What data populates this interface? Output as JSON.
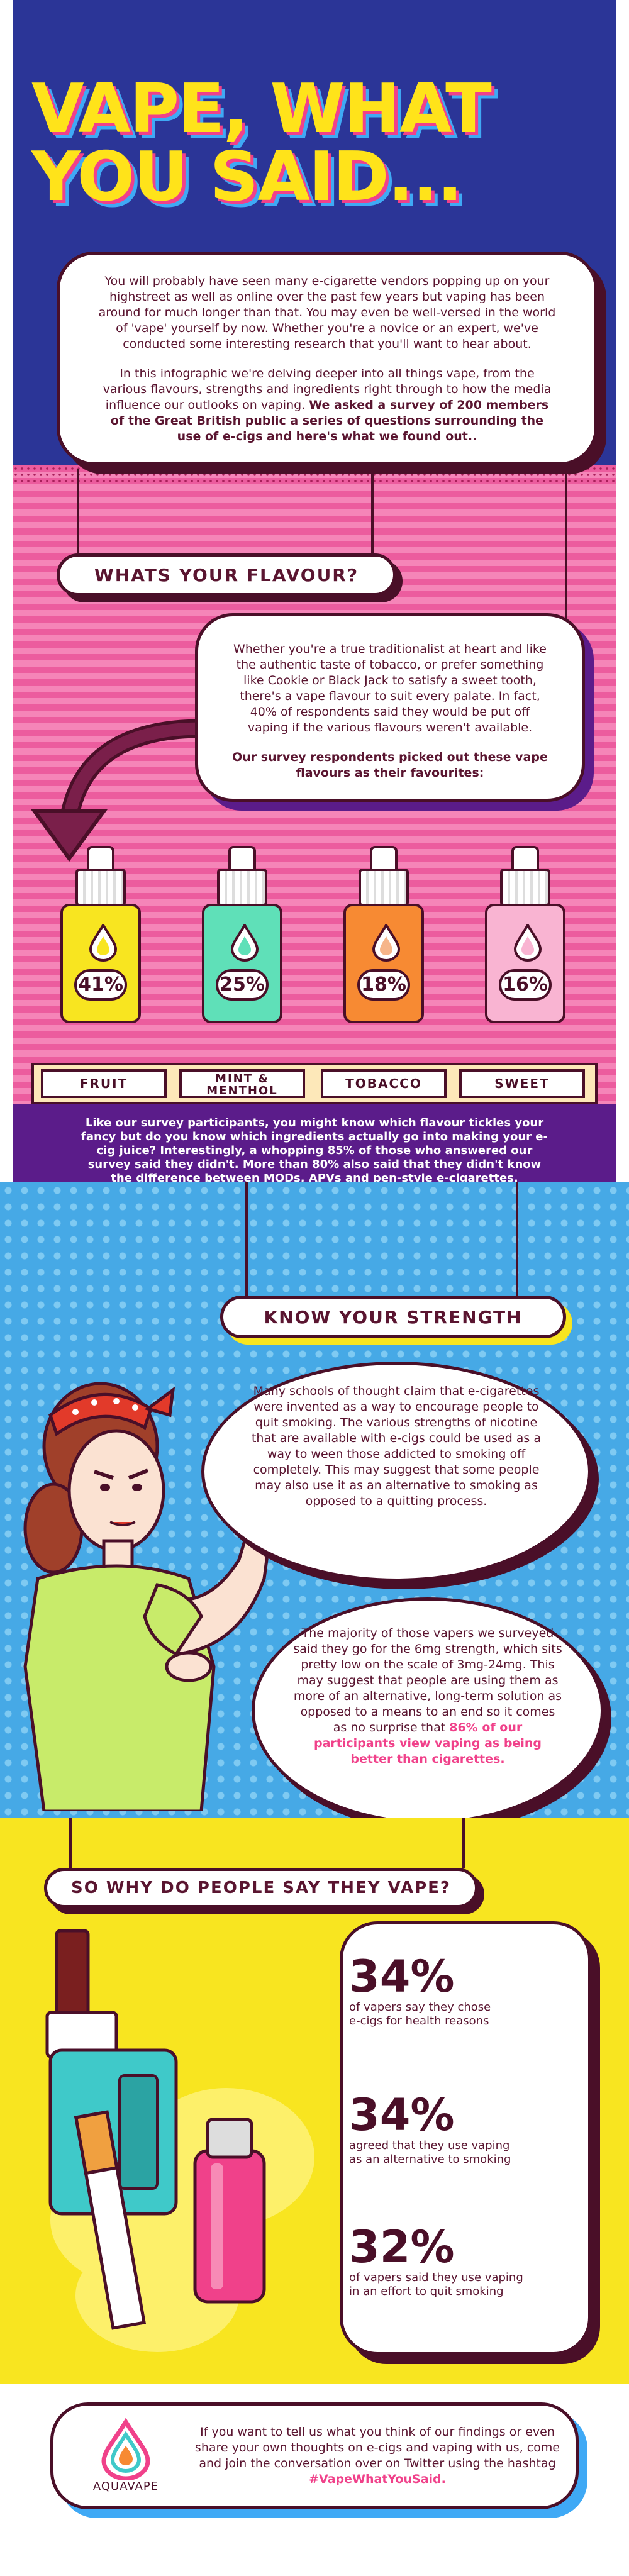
{
  "header": {
    "title_line1": "VAPE, WHAT",
    "title_line2": "YOU SAID...",
    "intro_p1": "You will probably have seen many e-cigarette vendors popping up on your highstreet as well as online over the past few years but vaping has been around for much longer than that. You may even be well-versed in the world of 'vape' yourself by now. Whether you're a novice or an expert, we've conducted some interesting research that you'll want to hear about.",
    "intro_p2": "In this infographic we're delving deeper into all things vape, from the various flavours, strengths and ingredients right through to how the media influence our outlooks on vaping.",
    "intro_p2_bold": "We asked a survey of 200 members of the Great British public a series of questions surrounding the use of e-cigs and here's what we found out.."
  },
  "flavour": {
    "heading": "WHATS YOUR FLAVOUR?",
    "text_p1": "Whether you're a true traditionalist at heart and like the authentic taste of tobacco, or prefer something like Cookie or Black Jack to satisfy a sweet tooth, there's a vape flavour to suit every palate. In fact, 40% of respondents said they would be put off vaping if the various flavours weren't available.",
    "text_p2": "Our survey respondents picked out these vape flavours as their favourites:",
    "bottles": [
      {
        "pct": "41%",
        "label": "FRUIT",
        "color": "#f8e520",
        "drop": "#f8e520"
      },
      {
        "pct": "25%",
        "label_l1": "MINT &",
        "label_l2": "MENTHOL",
        "color": "#5fe0b8",
        "drop": "#5fe0b8"
      },
      {
        "pct": "18%",
        "label": "TOBACCO",
        "color": "#f78a33",
        "drop": "#f6b58a"
      },
      {
        "pct": "16%",
        "label": "SWEET",
        "color": "#f9b4d2",
        "drop": "#f9b4d2"
      }
    ],
    "band_text": "Like our survey participants, you might know which flavour tickles your fancy but do you know which ingredients actually go into making your e-cig juice? Interestingly, a whopping 85% of those who answered our survey said they didn't. More than 80% also said that they didn't know the difference between MODs, APVs and pen-style e-cigarettes."
  },
  "strength": {
    "heading": "KNOW YOUR STRENGTH",
    "top_text": "Many schools of thought claim that e-cigarettes were invented as a way to encourage people to quit smoking. The various strengths of nicotine that are available with e-cigs could be used as a way to ween those addicted to smoking off completely. This may suggest that some people may also use it as an alternative to smoking as opposed to a quitting process.",
    "bottom_text": "The majority of those vapers we surveyed said they go for the 6mg strength, which sits pretty low on the scale of 3mg-24mg. This may suggest that people are using them as more of an alternative, long-term solution as opposed to a means to an end so it comes as no surprise that",
    "bottom_text_pink": "86% of our participants view vaping as being better than cigarettes."
  },
  "why": {
    "heading": "SO WHY DO PEOPLE SAY THEY VAPE?",
    "stats": [
      {
        "big": "34%",
        "desc_l1": "of vapers say they chose",
        "desc_l2": "e-cigs for health reasons"
      },
      {
        "big": "34%",
        "desc_l1": "agreed that they use vaping",
        "desc_l2": "as an alternative to smoking"
      },
      {
        "big": "32%",
        "desc_l1": "of vapers said they use vaping",
        "desc_l2": "in an effort to quit smoking"
      }
    ]
  },
  "footer": {
    "text": "If you want to tell us what you think of our findings or even share your own thoughts on e-cigs and vaping with us, come and join the conversation over on Twitter using the hashtag",
    "hashtag": "#VapeWhatYouSaid.",
    "logo_text": "AQUAVAPE"
  },
  "colors": {
    "navy": "#2b3597",
    "pink": "#ec5c9e",
    "blue": "#46a9e6",
    "yellow": "#f8e520",
    "maroon": "#4a0f28",
    "purple": "#5b1c8a"
  }
}
